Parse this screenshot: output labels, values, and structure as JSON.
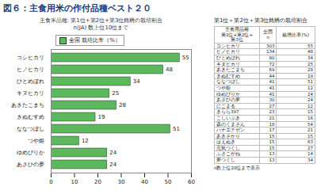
{
  "chart_data": {
    "type": "bar",
    "title": "図６：主食用米の作付品種ベスト２０",
    "subtitle": "主食米品種: 第1位+第2位+第3位銘柄の栽培割合\nn(JA) 数上位10位まで",
    "orientation": "horizontal",
    "categories": [
      "コシヒカリ",
      "ヒノヒカリ",
      "ひとめぼれ",
      "キヌヒカリ",
      "あきたこまち",
      "きぬむすめ",
      "ななつぼし",
      "つや姫",
      "ゆめぴりか",
      "あさひの夢"
    ],
    "series": [
      {
        "name": "全国 栽培比率（%）",
        "color": "#5cb85c",
        "values": [
          55,
          48,
          34,
          25,
          28,
          19,
          51,
          12,
          24,
          24
        ]
      }
    ],
    "xlim": [
      0,
      60
    ],
    "xticks": [
      0,
      10,
      20,
      30,
      40,
      50,
      60
    ],
    "data_labels": true,
    "legend": "top-left",
    "grid": false
  },
  "table": {
    "title": "第1位＋第2位＋第3位銘柄の栽培割合",
    "columns": [
      "主食用品種\n第1位+第2位+\n第3位",
      "全国\nn",
      "栽培比率(%)"
    ],
    "rows": [
      [
        "コシヒカリ",
        "303",
        "55"
      ],
      [
        "ヒノヒカリ",
        "134",
        "48"
      ],
      [
        "ひとめぼれ",
        "80",
        "34"
      ],
      [
        "キヌヒカリ",
        "72",
        "25"
      ],
      [
        "あきたこまち",
        "69",
        "28"
      ],
      [
        "きぬむすめ",
        "44",
        "19"
      ],
      [
        "ななつぼし",
        "41",
        "51"
      ],
      [
        "つや姫",
        "41",
        "12"
      ],
      [
        "ゆめぴりか",
        "41",
        "24"
      ],
      [
        "あさひの夢",
        "30",
        "24"
      ],
      [
        "にこまる",
        "27",
        "12"
      ],
      [
        "きらら397",
        "23",
        "15"
      ],
      [
        "こしいぶき",
        "21",
        "16"
      ],
      [
        "森のくまさん",
        "18",
        "54"
      ],
      [
        "ハナエチゼン",
        "17",
        "21"
      ],
      [
        "あきさかり",
        "15",
        "15"
      ],
      [
        "はえぬき",
        "15",
        "63"
      ],
      [
        "元気つくし",
        "15",
        "27"
      ],
      [
        "ふさこがね",
        "13",
        "14"
      ],
      [
        "夢つくし",
        "13",
        "34"
      ]
    ],
    "note": "n数上位20位まで表示"
  }
}
